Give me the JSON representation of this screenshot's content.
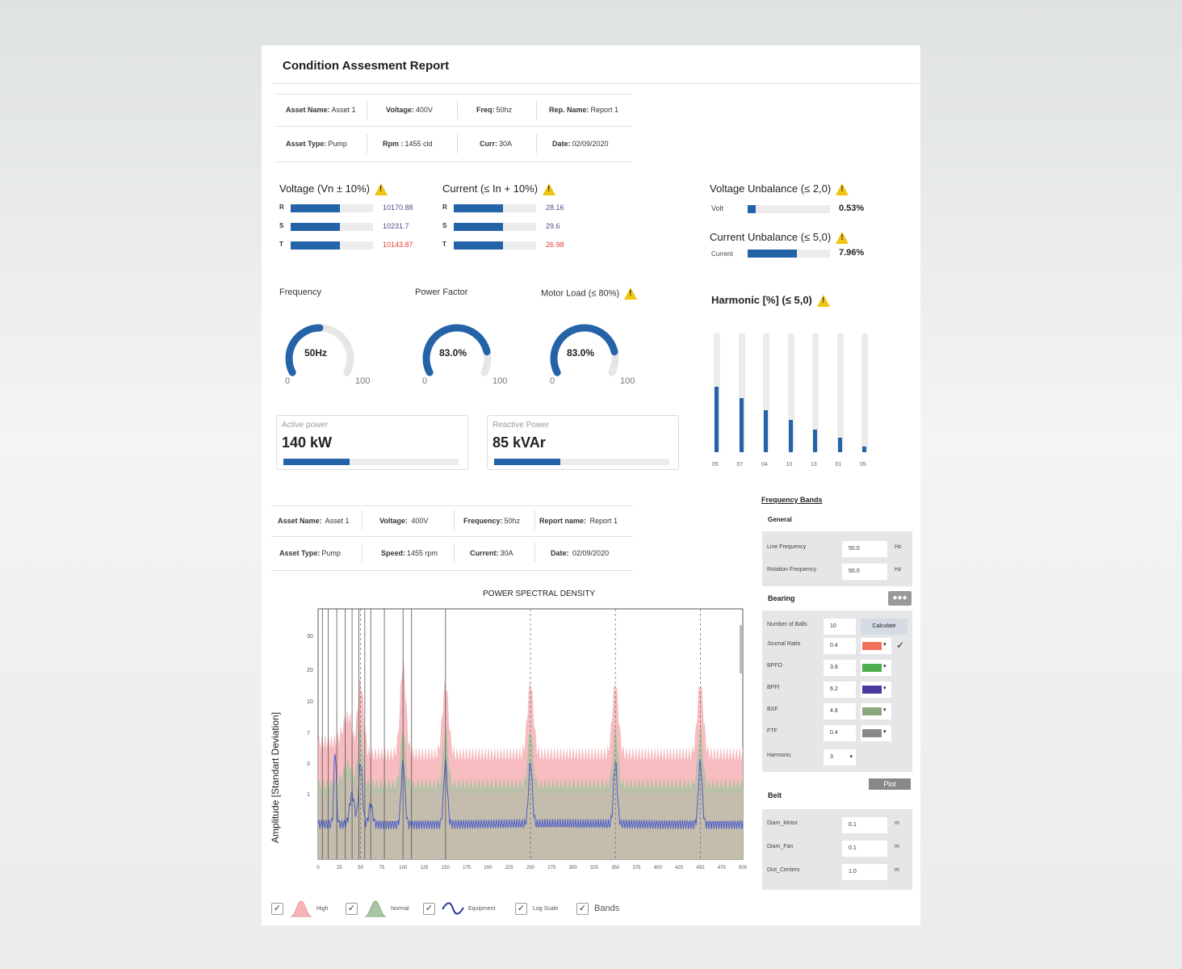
{
  "report_title": "Condition Assesment Report",
  "info_top": {
    "row1": [
      {
        "label": "Asset Name:",
        "value": "Asset 1"
      },
      {
        "label": "Voltage:",
        "value": "400V"
      },
      {
        "label": "Freq:",
        "value": "50hz"
      },
      {
        "label": "Rep. Name:",
        "value": "Report 1"
      }
    ],
    "row2": [
      {
        "label": "Asset Type:",
        "value": "Pump"
      },
      {
        "label": "Rpm :",
        "value": "1455 cld"
      },
      {
        "label": "Curr:",
        "value": "30A"
      },
      {
        "label": "Date:",
        "value": "02/09/2020"
      }
    ]
  },
  "voltage": {
    "title": "Voltage (Vn ± 10%)",
    "phases": [
      {
        "label": "R",
        "value": "10170.88",
        "fill": 0.6,
        "alert": false
      },
      {
        "label": "S",
        "value": "10231.7",
        "fill": 0.6,
        "alert": false
      },
      {
        "label": "T",
        "value": "10143.87",
        "fill": 0.6,
        "alert": true
      }
    ]
  },
  "current": {
    "title": "Current (≤ In + 10%)",
    "phases": [
      {
        "label": "R",
        "value": "28.16",
        "fill": 0.6,
        "alert": false
      },
      {
        "label": "S",
        "value": "29.6",
        "fill": 0.6,
        "alert": false
      },
      {
        "label": "T",
        "value": "26.98",
        "fill": 0.6,
        "alert": true
      }
    ]
  },
  "voltage_unbalance": {
    "title": "Voltage Unbalance (≤ 2,0)",
    "label": "Volt",
    "value": "0.53%",
    "fill": 0.1
  },
  "current_unbalance": {
    "title": "Current Unbalance (≤ 5,0)",
    "label": "Current",
    "value": "7.96%",
    "fill": 0.6
  },
  "gauges": [
    {
      "title": "Frequency",
      "value": "50Hz",
      "min": "0",
      "max": "100",
      "level": 0.5
    },
    {
      "title": "Power Factor",
      "value": "83.0%",
      "min": "0",
      "max": "100",
      "level": 0.83
    },
    {
      "title": "Motor Load (≤ 80%)",
      "value": "83.0%",
      "min": "0",
      "max": "100",
      "level": 0.83
    }
  ],
  "harmonic": {
    "title": "Harmonic [%] (≤ 5,0)",
    "bars": [
      {
        "label": "05",
        "level": 0.55
      },
      {
        "label": "07",
        "level": 0.45
      },
      {
        "label": "04",
        "level": 0.35
      },
      {
        "label": "10",
        "level": 0.27
      },
      {
        "label": "13",
        "level": 0.19
      },
      {
        "label": "01",
        "level": 0.12
      },
      {
        "label": "05",
        "level": 0.05
      }
    ]
  },
  "active_power": {
    "label": "Active power",
    "value": "140 kW",
    "fill": 0.38
  },
  "reactive_power": {
    "label": "Reactive Power",
    "value": "85 kVAr",
    "fill": 0.38
  },
  "info_bottom": {
    "row1": [
      {
        "label": "Asset Name:",
        "value": "Asset 1"
      },
      {
        "label": "Voltage:",
        "value": "400V"
      },
      {
        "label": "Frequency:",
        "value": "50hz"
      },
      {
        "label": "Report name:",
        "value": "Report 1"
      }
    ],
    "row2": [
      {
        "label": "Asset Type:",
        "value": "Pump"
      },
      {
        "label": "Speed:",
        "value": "1455 rpm"
      },
      {
        "label": "Current:",
        "value": "30A"
      },
      {
        "label": "Date:",
        "value": "02/09/2020"
      }
    ]
  },
  "chart_data": {
    "type": "area",
    "title": "POWER SPECTRAL DENSITY",
    "ylabel": "Amplitude [Standart Deviation]",
    "xlabel": "",
    "x_ticks": [
      "0",
      "25",
      "50",
      "75",
      "100",
      "125",
      "150",
      "175",
      "200",
      "225",
      "250",
      "275",
      "300",
      "325",
      "350",
      "375",
      "400",
      "425",
      "450",
      "475",
      "500"
    ],
    "y_ticks": [
      "30",
      "20",
      "10",
      "7",
      "3",
      "1"
    ],
    "peaks_x": [
      50,
      100,
      150,
      250,
      350,
      450
    ],
    "colors": {
      "high": "#f5b5b8",
      "normal": "#a9c4a1",
      "equipment": "#4a5ec9",
      "base": "#c9b9ae"
    },
    "series": [
      {
        "name": "High"
      },
      {
        "name": "Normal"
      },
      {
        "name": "Equipment"
      }
    ]
  },
  "legend": [
    {
      "label": "High",
      "checked": true
    },
    {
      "label": "Normal",
      "checked": true
    },
    {
      "label": "Equipment",
      "checked": true
    },
    {
      "label": "Log Scale",
      "checked": true
    },
    {
      "label": "Bands",
      "checked": true
    }
  ],
  "freq_bands": {
    "title": "Frequency Bands",
    "general_title": "General",
    "line_frequency": {
      "label": "Line Frequency",
      "value": "50.0",
      "unit": "Hz"
    },
    "rotation_frequency": {
      "label": "Rotation Frequency",
      "value": "50.0",
      "unit": "Hz"
    },
    "bearing_title": "Bearing",
    "number_of_balls": {
      "label": "Number of Balls",
      "value": "10"
    },
    "calculate_label": "Calculate",
    "bearing_rows": [
      {
        "label": "Journal Ratio",
        "value": "0.4",
        "color": "#f2705a"
      },
      {
        "label": "BPFO",
        "value": "3.8",
        "color": "#4caf50"
      },
      {
        "label": "BPFI",
        "value": "6.2",
        "color": "#4b3a9e"
      },
      {
        "label": "BSF",
        "value": "4.8",
        "color": "#8aa879"
      },
      {
        "label": "FTF",
        "value": "0.4",
        "color": "#8a8a8a"
      }
    ],
    "harmonic": {
      "label": "Harmonic",
      "value": "3"
    },
    "plot_label": "Plot",
    "belt_title": "Belt",
    "belt_rows": [
      {
        "label": "Diam_Motor",
        "value": "0.1",
        "unit": "m"
      },
      {
        "label": "Diam_Fan",
        "value": "0.1",
        "unit": "m"
      },
      {
        "label": "Dist_Centers",
        "value": "1.0",
        "unit": "m"
      }
    ]
  }
}
